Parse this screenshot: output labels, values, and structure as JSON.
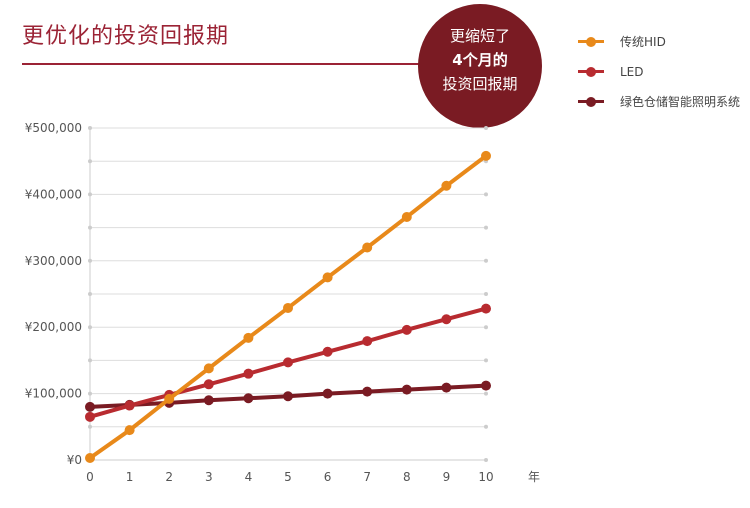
{
  "header": {
    "title": "更优化的投资回报期"
  },
  "badge": {
    "line1": "更缩短了",
    "line2": "4个月的",
    "line3": "投资回报期"
  },
  "colors": {
    "brand": "#9b2335",
    "badge": "#7a1b23"
  },
  "chart_data": {
    "type": "line",
    "title": "更优化的投资回报期",
    "xlabel": "年",
    "ylabel": "",
    "x": [
      0,
      1,
      2,
      3,
      4,
      5,
      6,
      7,
      8,
      9,
      10
    ],
    "x_tick_labels": [
      "0",
      "1",
      "2",
      "3",
      "4",
      "5",
      "6",
      "7",
      "8",
      "9",
      "10"
    ],
    "ylim": [
      0,
      500000
    ],
    "y_ticks": [
      0,
      100000,
      200000,
      300000,
      400000,
      500000
    ],
    "y_tick_labels": [
      "¥0",
      "¥100,000",
      "¥200,000",
      "¥300,000",
      "¥400,000",
      "¥500,000"
    ],
    "legend_position": "top-right",
    "grid": true,
    "series": [
      {
        "name": "传统HID",
        "color": "#e8891a",
        "values": [
          3000,
          45000,
          92000,
          138000,
          184000,
          229000,
          275000,
          320000,
          366000,
          413000,
          458000
        ]
      },
      {
        "name": "LED",
        "color": "#b82b30",
        "values": [
          65000,
          82000,
          98000,
          114000,
          130000,
          147000,
          163000,
          179000,
          196000,
          212000,
          228000
        ]
      },
      {
        "name": "绿色仓储智能照明系统",
        "color": "#7a1b23",
        "values": [
          80000,
          83000,
          86000,
          90000,
          93000,
          96000,
          100000,
          103000,
          106000,
          109000,
          112000
        ]
      }
    ]
  }
}
